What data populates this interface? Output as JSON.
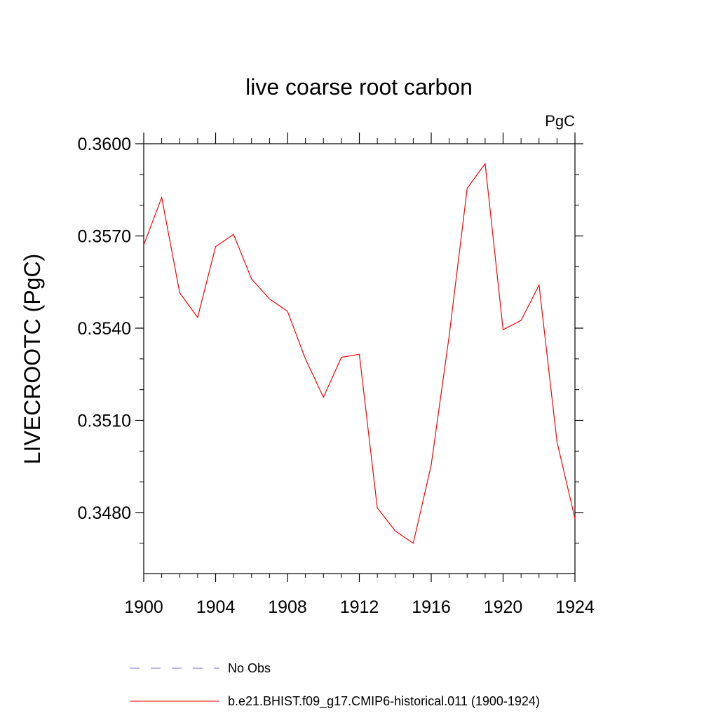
{
  "chart_data": {
    "type": "line",
    "title": "live coarse root carbon",
    "units_label": "PgC",
    "xlabel": "",
    "ylabel": "LIVECROOTC  (PgC)",
    "xlim": [
      1900,
      1924
    ],
    "ylim": [
      0.3462,
      0.3602
    ],
    "x_ticks": [
      1900,
      1904,
      1908,
      1912,
      1916,
      1920,
      1924
    ],
    "x_tick_labels": [
      "1900",
      "1904",
      "1908",
      "1912",
      "1916",
      "1920",
      "1924"
    ],
    "y_ticks": [
      0.348,
      0.351,
      0.354,
      0.357,
      0.36
    ],
    "y_tick_labels": [
      "0.3480",
      "0.3510",
      "0.3540",
      "0.3570",
      "0.3600"
    ],
    "grid": false,
    "legend_position": "bottom",
    "series": [
      {
        "name": "b.e21.BHIST.f09_g17.CMIP6-historical.011 (1900-1924)",
        "color": "#ff0000",
        "line_style": "solid",
        "x": [
          1900,
          1901,
          1902,
          1903,
          1904,
          1905,
          1906,
          1907,
          1908,
          1909,
          1910,
          1911,
          1912,
          1913,
          1914,
          1915,
          1916,
          1917,
          1918,
          1919,
          1920,
          1921,
          1922,
          1923,
          1924
        ],
        "values": [
          0.3567,
          0.35825,
          0.35515,
          0.35435,
          0.35665,
          0.35705,
          0.3556,
          0.35495,
          0.35455,
          0.353,
          0.35175,
          0.35305,
          0.35315,
          0.34815,
          0.3474,
          0.347,
          0.34955,
          0.35375,
          0.35855,
          0.35935,
          0.35395,
          0.35425,
          0.3554,
          0.3503,
          0.3478
        ]
      },
      {
        "name": "No Obs",
        "color": "#7070c0",
        "line_style": "dashed",
        "x": [],
        "values": []
      }
    ]
  }
}
